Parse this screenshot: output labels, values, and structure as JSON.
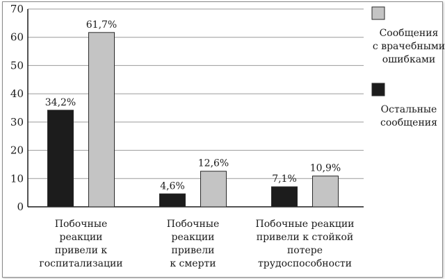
{
  "chart_data": {
    "type": "bar",
    "categories": [
      [
        "Побочные",
        "реакции",
        "привели к",
        "госпитализации"
      ],
      [
        "Побочные",
        "реакции",
        "привели",
        "к смерти"
      ],
      [
        "Побочные реакции",
        "привели к стойкой",
        "потере",
        "трудоспособности"
      ]
    ],
    "series": [
      {
        "name": [
          "Остальные",
          "сообщения"
        ],
        "values": [
          34.2,
          4.6,
          7.1
        ],
        "labels": [
          "34,2%",
          "4,6%",
          "7,1%"
        ],
        "color": "#1c1c1c"
      },
      {
        "name": [
          "Сообщения",
          "с врачебными",
          "ошибками"
        ],
        "values": [
          61.7,
          12.6,
          10.9
        ],
        "labels": [
          "61,7%",
          "12,6%",
          "10,9%"
        ],
        "color": "#c4c4c4"
      }
    ],
    "ylim": [
      0,
      70
    ],
    "yticks": [
      0,
      10,
      20,
      30,
      40,
      50,
      60,
      70
    ],
    "grid": true,
    "legend": "right",
    "legend_order": [
      1,
      0
    ]
  }
}
